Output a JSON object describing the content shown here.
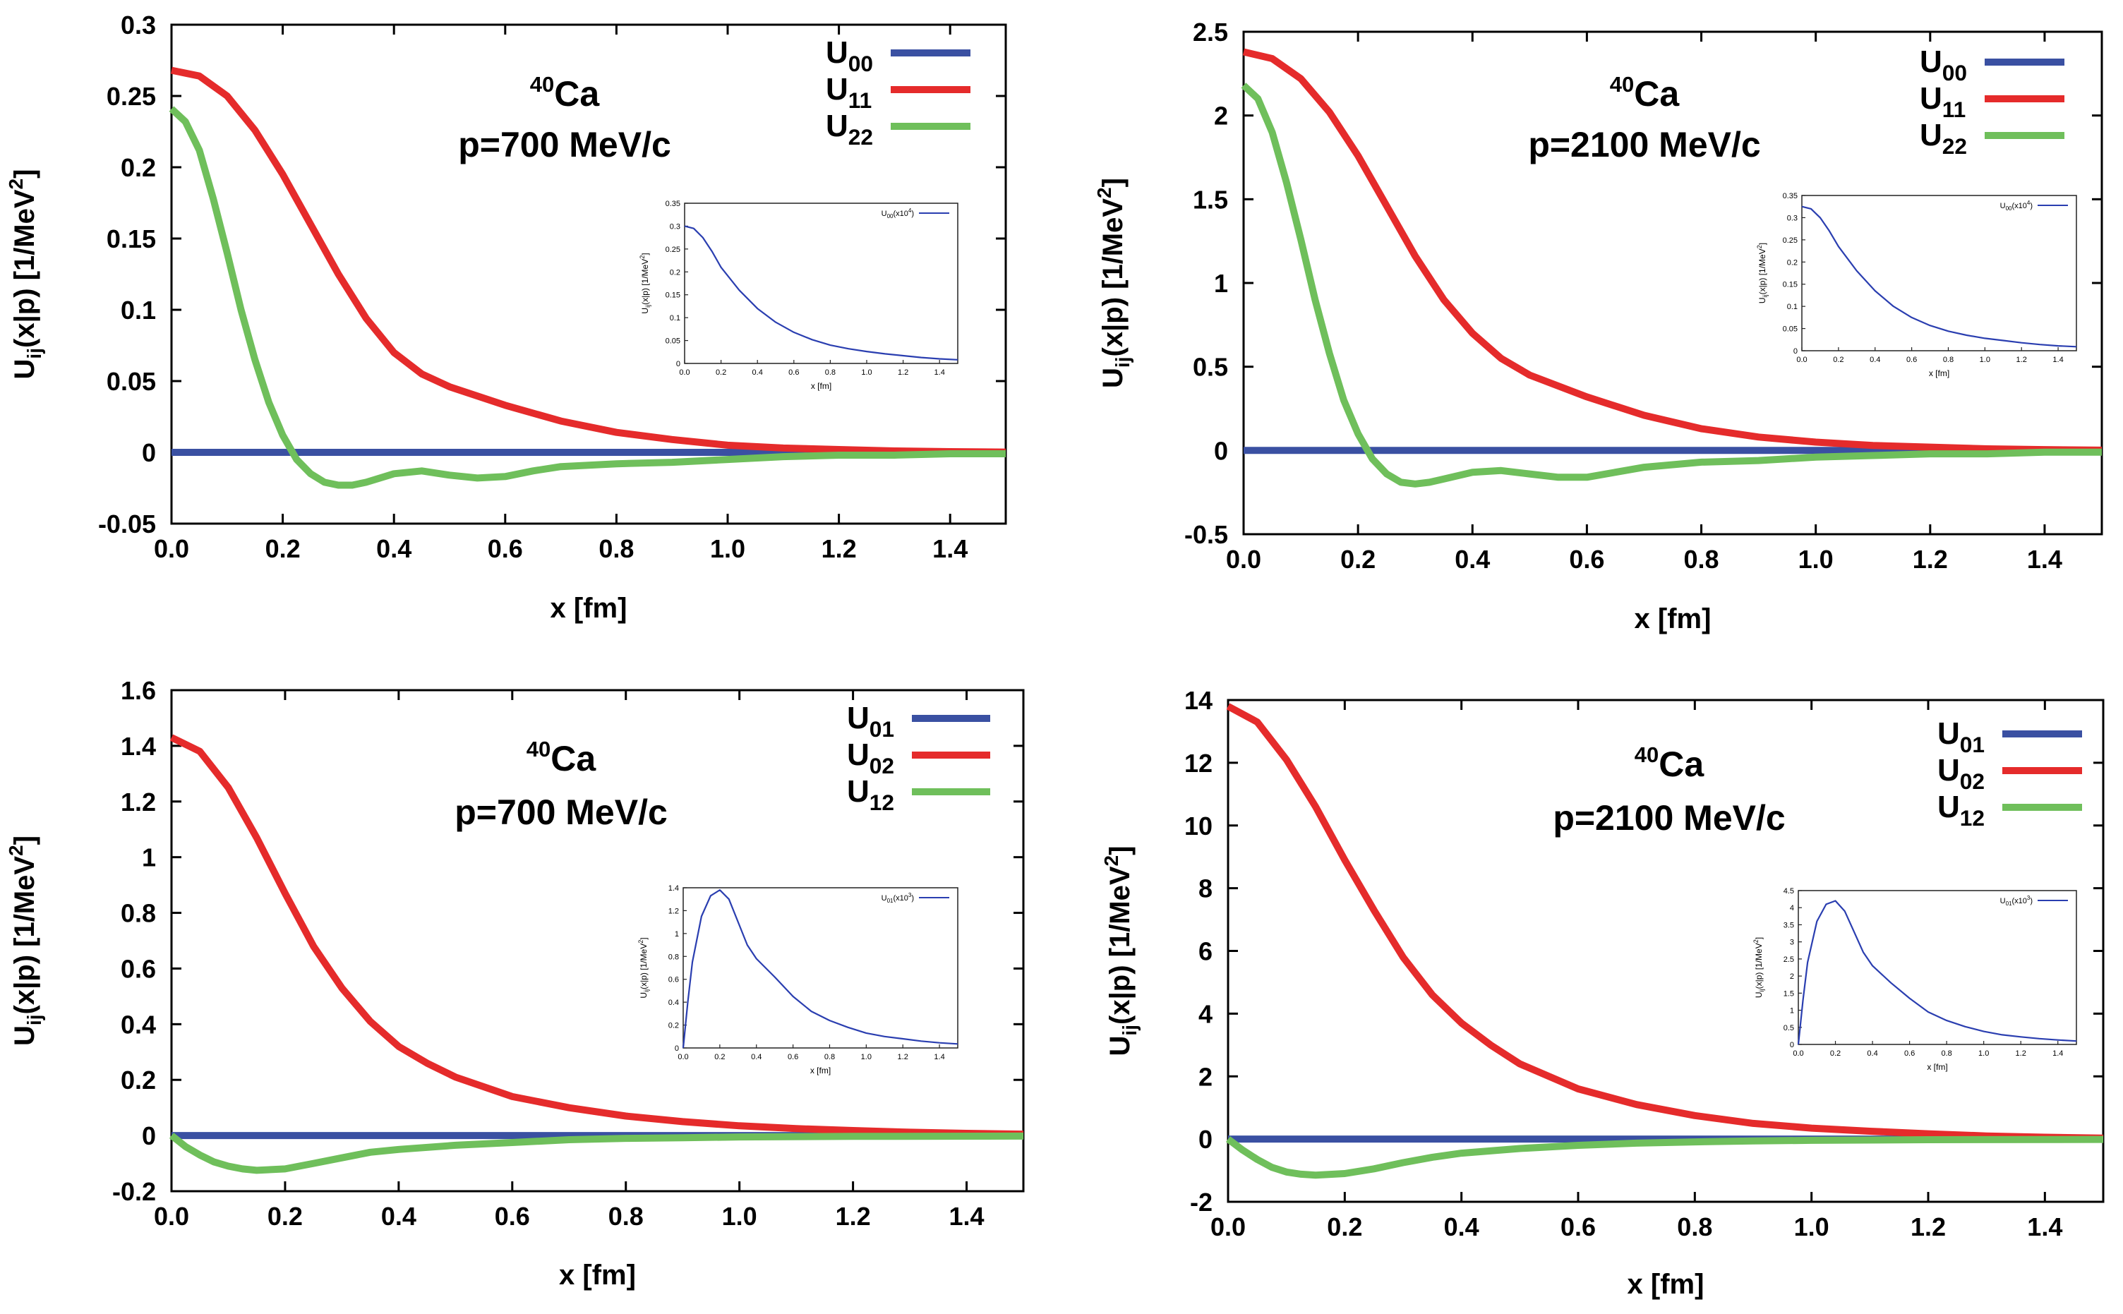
{
  "figure": {
    "colors": {
      "blue": "#3a50a2",
      "red": "#e52b2b",
      "green": "#6fbf5b",
      "inset_line": "#2a3eb0"
    },
    "x_axis_label": "x [fm]",
    "y_axis_label": "U_ij(x|p) [1/MeV^2]",
    "nucleus": "Ca",
    "nucleus_mass": "40"
  },
  "chart_data": [
    {
      "type": "line",
      "id": "top-left",
      "annotation": {
        "isotope_mass": "40",
        "element": "Ca",
        "momentum": "p=700 MeV/c"
      },
      "xlabel": "x [fm]",
      "ylabel": "U_ij(x|p) [1/MeV^2]",
      "xlim": [
        0,
        1.5
      ],
      "ylim": [
        -0.05,
        0.3
      ],
      "xticks": [
        0,
        0.2,
        0.4,
        0.6,
        0.8,
        1.0,
        1.2,
        1.4
      ],
      "xtick_labels": [
        "0.0",
        "0.2",
        "0.4",
        "0.6",
        "0.8",
        "1.0",
        "1.2",
        "1.4"
      ],
      "yticks": [
        -0.05,
        0,
        0.05,
        0.1,
        0.15,
        0.2,
        0.25,
        0.3
      ],
      "ytick_labels": [
        "-0.05",
        "0",
        "0.05",
        "0.1",
        "0.15",
        "0.2",
        "0.25",
        "0.3"
      ],
      "legend_position": "top-right",
      "series": [
        {
          "name": "U00",
          "base": "U",
          "sub": "00",
          "color": "blue",
          "x": [
            0,
            1.5
          ],
          "y": [
            0,
            0
          ]
        },
        {
          "name": "U11",
          "base": "U",
          "sub": "11",
          "color": "red",
          "x": [
            0,
            0.05,
            0.1,
            0.15,
            0.2,
            0.25,
            0.3,
            0.35,
            0.4,
            0.45,
            0.5,
            0.6,
            0.7,
            0.8,
            0.9,
            1.0,
            1.1,
            1.2,
            1.3,
            1.4,
            1.5
          ],
          "y": [
            0.268,
            0.264,
            0.25,
            0.226,
            0.195,
            0.16,
            0.125,
            0.094,
            0.07,
            0.055,
            0.046,
            0.033,
            0.022,
            0.014,
            0.009,
            0.005,
            0.003,
            0.002,
            0.001,
            0.0005,
            0.0002
          ]
        },
        {
          "name": "U22",
          "base": "U",
          "sub": "22",
          "color": "green",
          "x": [
            0,
            0.025,
            0.05,
            0.075,
            0.1,
            0.125,
            0.15,
            0.175,
            0.2,
            0.225,
            0.25,
            0.275,
            0.3,
            0.325,
            0.35,
            0.4,
            0.45,
            0.5,
            0.55,
            0.6,
            0.65,
            0.7,
            0.8,
            0.9,
            1.0,
            1.1,
            1.2,
            1.3,
            1.4,
            1.5
          ],
          "y": [
            0.241,
            0.232,
            0.212,
            0.178,
            0.14,
            0.1,
            0.065,
            0.035,
            0.012,
            -0.005,
            -0.015,
            -0.021,
            -0.023,
            -0.023,
            -0.021,
            -0.015,
            -0.013,
            -0.016,
            -0.018,
            -0.017,
            -0.013,
            -0.01,
            -0.008,
            -0.007,
            -0.005,
            -0.003,
            -0.002,
            -0.002,
            -0.001,
            -0.001
          ]
        }
      ],
      "inset": {
        "series_label": "U00(x10^4)",
        "label_base": "U",
        "label_sub": "00",
        "label_scale": "(x10",
        "label_exp": "4",
        "label_close": ")",
        "xlabel": "x [fm]",
        "ylabel": "U_ij(x|p) [1/MeV^2]",
        "xlim": [
          0,
          1.5
        ],
        "ylim": [
          0,
          0.35
        ],
        "xticks": [
          0,
          0.2,
          0.4,
          0.6,
          0.8,
          1.0,
          1.2,
          1.4
        ],
        "xtick_labels": [
          "0.0",
          "0.2",
          "0.4",
          "0.6",
          "0.8",
          "1.0",
          "1.2",
          "1.4"
        ],
        "yticks": [
          0,
          0.05,
          0.1,
          0.15,
          0.2,
          0.25,
          0.3,
          0.35
        ],
        "ytick_labels": [
          "0",
          "0.05",
          "0.1",
          "0.15",
          "0.2",
          "0.25",
          "0.3",
          "0.35"
        ],
        "x": [
          0,
          0.05,
          0.1,
          0.15,
          0.2,
          0.3,
          0.4,
          0.5,
          0.6,
          0.7,
          0.8,
          0.9,
          1.0,
          1.1,
          1.2,
          1.3,
          1.4,
          1.5
        ],
        "y": [
          0.3,
          0.295,
          0.275,
          0.245,
          0.21,
          0.16,
          0.12,
          0.09,
          0.068,
          0.052,
          0.04,
          0.032,
          0.026,
          0.021,
          0.017,
          0.013,
          0.01,
          0.008
        ]
      }
    },
    {
      "type": "line",
      "id": "top-right",
      "annotation": {
        "isotope_mass": "40",
        "element": "Ca",
        "momentum": "p=2100 MeV/c"
      },
      "xlabel": "x [fm]",
      "ylabel": "U_ij(x|p) [1/MeV^2]",
      "xlim": [
        0,
        1.5
      ],
      "ylim": [
        -0.5,
        2.5
      ],
      "xticks": [
        0,
        0.2,
        0.4,
        0.6,
        0.8,
        1.0,
        1.2,
        1.4
      ],
      "xtick_labels": [
        "0.0",
        "0.2",
        "0.4",
        "0.6",
        "0.8",
        "1.0",
        "1.2",
        "1.4"
      ],
      "yticks": [
        -0.5,
        0,
        0.5,
        1,
        1.5,
        2,
        2.5
      ],
      "ytick_labels": [
        "-0.5",
        "0",
        "0.5",
        "1",
        "1.5",
        "2",
        "2.5"
      ],
      "legend_position": "top-right",
      "series": [
        {
          "name": "U00",
          "base": "U",
          "sub": "00",
          "color": "blue",
          "x": [
            0,
            1.5
          ],
          "y": [
            0,
            0
          ]
        },
        {
          "name": "U11",
          "base": "U",
          "sub": "11",
          "color": "red",
          "x": [
            0,
            0.05,
            0.1,
            0.15,
            0.2,
            0.25,
            0.3,
            0.35,
            0.4,
            0.45,
            0.5,
            0.6,
            0.7,
            0.8,
            0.9,
            1.0,
            1.1,
            1.2,
            1.3,
            1.4,
            1.5
          ],
          "y": [
            2.38,
            2.34,
            2.22,
            2.02,
            1.76,
            1.46,
            1.16,
            0.9,
            0.7,
            0.55,
            0.45,
            0.32,
            0.21,
            0.13,
            0.08,
            0.05,
            0.03,
            0.02,
            0.01,
            0.005,
            0.002
          ]
        },
        {
          "name": "U22",
          "base": "U",
          "sub": "22",
          "color": "green",
          "x": [
            0,
            0.025,
            0.05,
            0.075,
            0.1,
            0.125,
            0.15,
            0.175,
            0.2,
            0.225,
            0.25,
            0.275,
            0.3,
            0.325,
            0.35,
            0.4,
            0.45,
            0.5,
            0.55,
            0.6,
            0.65,
            0.7,
            0.8,
            0.9,
            1.0,
            1.1,
            1.2,
            1.3,
            1.4,
            1.5
          ],
          "y": [
            2.18,
            2.1,
            1.9,
            1.6,
            1.26,
            0.9,
            0.58,
            0.3,
            0.1,
            -0.05,
            -0.14,
            -0.19,
            -0.2,
            -0.19,
            -0.17,
            -0.13,
            -0.12,
            -0.14,
            -0.16,
            -0.16,
            -0.13,
            -0.1,
            -0.07,
            -0.06,
            -0.04,
            -0.03,
            -0.02,
            -0.02,
            -0.01,
            -0.01
          ]
        }
      ],
      "inset": {
        "series_label": "U00(x10^4)",
        "label_base": "U",
        "label_sub": "00",
        "label_scale": "(x10",
        "label_exp": "4",
        "label_close": ")",
        "xlabel": "x [fm]",
        "ylabel": "U_ij(x|p) [1/MeV^2]",
        "xlim": [
          0,
          1.5
        ],
        "ylim": [
          0,
          0.35
        ],
        "xticks": [
          0,
          0.2,
          0.4,
          0.6,
          0.8,
          1.0,
          1.2,
          1.4
        ],
        "xtick_labels": [
          "0.0",
          "0.2",
          "0.4",
          "0.6",
          "0.8",
          "1.0",
          "1.2",
          "1.4"
        ],
        "yticks": [
          0,
          0.05,
          0.1,
          0.15,
          0.2,
          0.25,
          0.3,
          0.35
        ],
        "ytick_labels": [
          "0",
          "0.05",
          "0.1",
          "0.15",
          "0.2",
          "0.25",
          "0.3",
          "0.35"
        ],
        "x": [
          0,
          0.05,
          0.1,
          0.15,
          0.2,
          0.3,
          0.4,
          0.5,
          0.6,
          0.7,
          0.8,
          0.9,
          1.0,
          1.1,
          1.2,
          1.3,
          1.4,
          1.5
        ],
        "y": [
          0.325,
          0.32,
          0.3,
          0.27,
          0.235,
          0.18,
          0.135,
          0.1,
          0.075,
          0.057,
          0.044,
          0.035,
          0.028,
          0.023,
          0.018,
          0.014,
          0.011,
          0.009
        ]
      }
    },
    {
      "type": "line",
      "id": "bottom-left",
      "annotation": {
        "isotope_mass": "40",
        "element": "Ca",
        "momentum": "p=700 MeV/c"
      },
      "xlabel": "x [fm]",
      "ylabel": "U_ij(x|p) [1/MeV^2]",
      "xlim": [
        0,
        1.5
      ],
      "ylim": [
        -0.2,
        1.6
      ],
      "xticks": [
        0,
        0.2,
        0.4,
        0.6,
        0.8,
        1.0,
        1.2,
        1.4
      ],
      "xtick_labels": [
        "0.0",
        "0.2",
        "0.4",
        "0.6",
        "0.8",
        "1.0",
        "1.2",
        "1.4"
      ],
      "yticks": [
        -0.2,
        0,
        0.2,
        0.4,
        0.6,
        0.8,
        1,
        1.2,
        1.4,
        1.6
      ],
      "ytick_labels": [
        "-0.2",
        "0",
        "0.2",
        "0.4",
        "0.6",
        "0.8",
        "1",
        "1.2",
        "1.4",
        "1.6"
      ],
      "legend_position": "top-right",
      "series": [
        {
          "name": "U01",
          "base": "U",
          "sub": "01",
          "color": "blue",
          "x": [
            0,
            1.5
          ],
          "y": [
            0,
            0
          ]
        },
        {
          "name": "U02",
          "base": "U",
          "sub": "02",
          "color": "red",
          "x": [
            0,
            0.05,
            0.1,
            0.15,
            0.2,
            0.25,
            0.3,
            0.35,
            0.4,
            0.45,
            0.5,
            0.6,
            0.7,
            0.8,
            0.9,
            1.0,
            1.1,
            1.2,
            1.3,
            1.4,
            1.5
          ],
          "y": [
            1.43,
            1.38,
            1.25,
            1.07,
            0.87,
            0.68,
            0.53,
            0.41,
            0.32,
            0.26,
            0.21,
            0.14,
            0.1,
            0.07,
            0.05,
            0.035,
            0.025,
            0.018,
            0.012,
            0.008,
            0.005
          ]
        },
        {
          "name": "U12",
          "base": "U",
          "sub": "12",
          "color": "green",
          "x": [
            0,
            0.025,
            0.05,
            0.075,
            0.1,
            0.125,
            0.15,
            0.2,
            0.25,
            0.3,
            0.35,
            0.4,
            0.5,
            0.6,
            0.7,
            0.8,
            0.9,
            1.0,
            1.2,
            1.5
          ],
          "y": [
            0,
            -0.04,
            -0.07,
            -0.095,
            -0.11,
            -0.12,
            -0.125,
            -0.12,
            -0.1,
            -0.08,
            -0.06,
            -0.05,
            -0.035,
            -0.025,
            -0.015,
            -0.01,
            -0.008,
            -0.005,
            -0.003,
            -0.002
          ]
        }
      ],
      "inset": {
        "series_label": "U01(x10^3)",
        "label_base": "U",
        "label_sub": "01",
        "label_scale": "(x10",
        "label_exp": "3",
        "label_close": ")",
        "xlabel": "x [fm]",
        "ylabel": "U_ij(x|p) [1/MeV^2]",
        "xlim": [
          0,
          1.5
        ],
        "ylim": [
          0,
          1.4
        ],
        "xticks": [
          0,
          0.2,
          0.4,
          0.6,
          0.8,
          1.0,
          1.2,
          1.4
        ],
        "xtick_labels": [
          "0.0",
          "0.2",
          "0.4",
          "0.6",
          "0.8",
          "1.0",
          "1.2",
          "1.4"
        ],
        "yticks": [
          0,
          0.2,
          0.4,
          0.6,
          0.8,
          1,
          1.2,
          1.4
        ],
        "ytick_labels": [
          "0",
          "0.2",
          "0.4",
          "0.6",
          "0.8",
          "1",
          "1.2",
          "1.4"
        ],
        "x": [
          0,
          0.025,
          0.05,
          0.1,
          0.15,
          0.2,
          0.25,
          0.3,
          0.35,
          0.4,
          0.5,
          0.6,
          0.7,
          0.8,
          0.9,
          1.0,
          1.1,
          1.2,
          1.3,
          1.4,
          1.5
        ],
        "y": [
          0,
          0.4,
          0.75,
          1.15,
          1.33,
          1.38,
          1.3,
          1.1,
          0.9,
          0.78,
          0.62,
          0.45,
          0.32,
          0.24,
          0.18,
          0.13,
          0.1,
          0.08,
          0.06,
          0.045,
          0.035
        ]
      }
    },
    {
      "type": "line",
      "id": "bottom-right",
      "annotation": {
        "isotope_mass": "40",
        "element": "Ca",
        "momentum": "p=2100 MeV/c"
      },
      "xlabel": "x [fm]",
      "ylabel": "U_ij(x|p) [1/MeV^2]",
      "xlim": [
        0,
        1.5
      ],
      "ylim": [
        -2,
        14
      ],
      "xticks": [
        0,
        0.2,
        0.4,
        0.6,
        0.8,
        1.0,
        1.2,
        1.4
      ],
      "xtick_labels": [
        "0.0",
        "0.2",
        "0.4",
        "0.6",
        "0.8",
        "1.0",
        "1.2",
        "1.4"
      ],
      "yticks": [
        -2,
        0,
        2,
        4,
        6,
        8,
        10,
        12,
        14
      ],
      "ytick_labels": [
        "-2",
        "0",
        "2",
        "4",
        "6",
        "8",
        "10",
        "12",
        "14"
      ],
      "legend_position": "top-right",
      "series": [
        {
          "name": "U01",
          "base": "U",
          "sub": "01",
          "color": "blue",
          "x": [
            0,
            1.5
          ],
          "y": [
            0,
            0
          ]
        },
        {
          "name": "U02",
          "base": "U",
          "sub": "02",
          "color": "red",
          "x": [
            0,
            0.05,
            0.1,
            0.15,
            0.2,
            0.25,
            0.3,
            0.35,
            0.4,
            0.45,
            0.5,
            0.6,
            0.7,
            0.8,
            0.9,
            1.0,
            1.1,
            1.2,
            1.3,
            1.4,
            1.5
          ],
          "y": [
            13.8,
            13.3,
            12.1,
            10.6,
            8.9,
            7.3,
            5.8,
            4.6,
            3.7,
            3.0,
            2.4,
            1.6,
            1.1,
            0.75,
            0.5,
            0.35,
            0.25,
            0.17,
            0.1,
            0.06,
            0.03
          ]
        },
        {
          "name": "U12",
          "base": "U",
          "sub": "12",
          "color": "green",
          "x": [
            0,
            0.025,
            0.05,
            0.075,
            0.1,
            0.125,
            0.15,
            0.2,
            0.25,
            0.3,
            0.35,
            0.4,
            0.5,
            0.6,
            0.7,
            0.8,
            0.9,
            1.0,
            1.2,
            1.5
          ],
          "y": [
            0,
            -0.35,
            -0.65,
            -0.9,
            -1.05,
            -1.12,
            -1.15,
            -1.1,
            -0.95,
            -0.75,
            -0.58,
            -0.45,
            -0.3,
            -0.2,
            -0.13,
            -0.09,
            -0.06,
            -0.04,
            -0.02,
            -0.01
          ]
        }
      ],
      "inset": {
        "series_label": "U01(x10^3)",
        "label_base": "U",
        "label_sub": "01",
        "label_scale": "(x10",
        "label_exp": "3",
        "label_close": ")",
        "xlabel": "x [fm]",
        "ylabel": "U_ij(x|p) [1/MeV^2]",
        "xlim": [
          0,
          1.5
        ],
        "ylim": [
          0,
          4.5
        ],
        "xticks": [
          0,
          0.2,
          0.4,
          0.6,
          0.8,
          1.0,
          1.2,
          1.4
        ],
        "xtick_labels": [
          "0.0",
          "0.2",
          "0.4",
          "0.6",
          "0.8",
          "1.0",
          "1.2",
          "1.4"
        ],
        "yticks": [
          0,
          0.5,
          1,
          1.5,
          2,
          2.5,
          3,
          3.5,
          4,
          4.5
        ],
        "ytick_labels": [
          "0",
          "0.5",
          "1",
          "1.5",
          "2",
          "2.5",
          "3",
          "3.5",
          "4",
          "4.5"
        ],
        "x": [
          0,
          0.025,
          0.05,
          0.1,
          0.15,
          0.2,
          0.25,
          0.3,
          0.35,
          0.4,
          0.5,
          0.6,
          0.7,
          0.8,
          0.9,
          1.0,
          1.1,
          1.2,
          1.3,
          1.4,
          1.5
        ],
        "y": [
          0,
          1.3,
          2.4,
          3.6,
          4.1,
          4.2,
          3.9,
          3.3,
          2.7,
          2.3,
          1.8,
          1.35,
          0.95,
          0.7,
          0.52,
          0.38,
          0.28,
          0.22,
          0.17,
          0.13,
          0.1
        ]
      }
    }
  ]
}
